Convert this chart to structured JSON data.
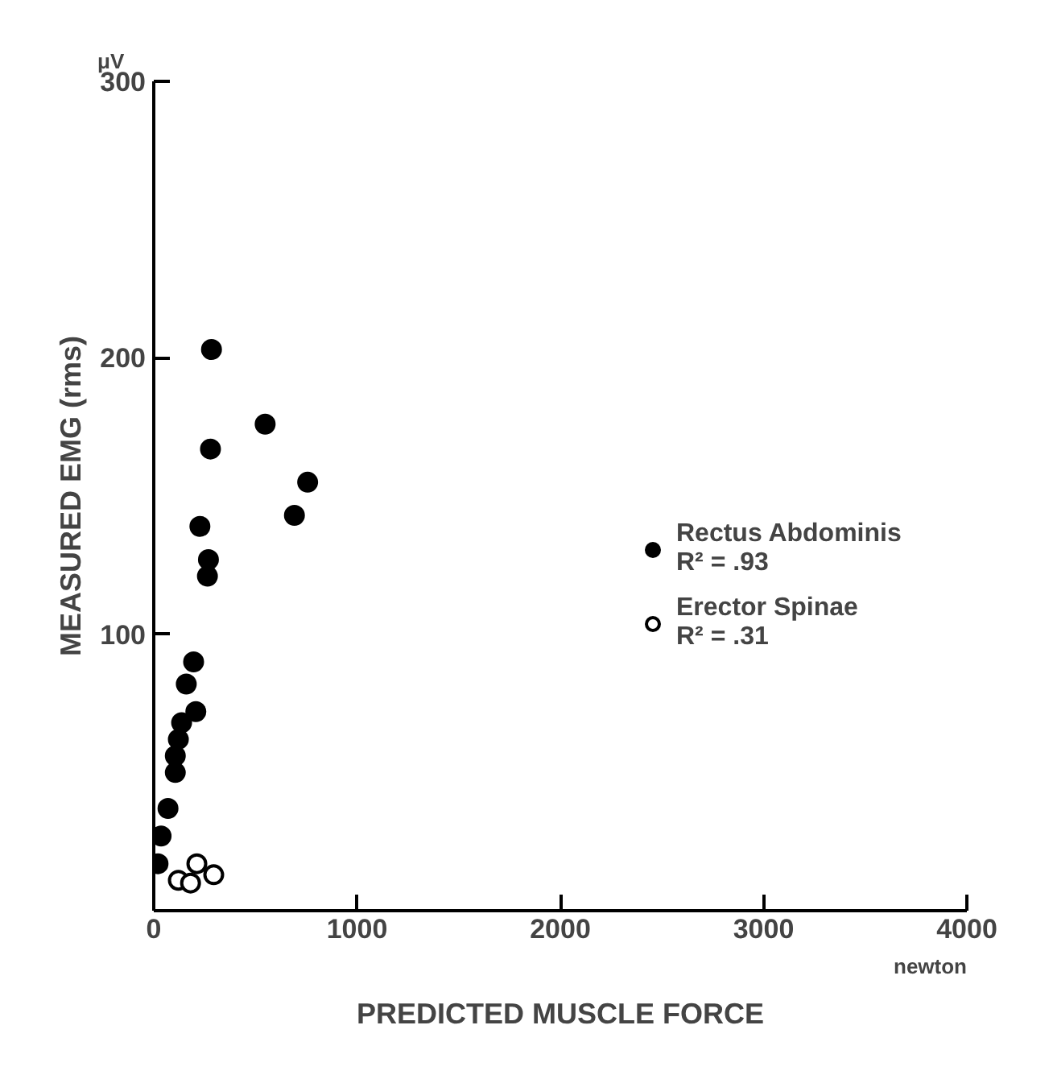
{
  "chart_data": {
    "type": "scatter",
    "xlabel": "PREDICTED MUSCLE FORCE",
    "ylabel": "MEASURED EMG (rms)",
    "xlim": [
      0,
      4000
    ],
    "ylim": [
      0,
      300
    ],
    "xticks": [
      0,
      1000,
      2000,
      3000,
      4000
    ],
    "yticks": [
      100,
      200,
      300
    ],
    "grid": false,
    "legend": "right",
    "marker": "circle",
    "annotations": [
      "R² = .93",
      "R² = .31",
      "μV",
      "newton"
    ],
    "series": [
      {
        "name": "Rectus Abdominis",
        "color": "#000000",
        "x": [
          284,
          548,
          279,
          757,
          692,
          227,
          269,
          264,
          196,
          160,
          207,
          137,
          121,
          106,
          106,
          70,
          36,
          21
        ],
        "values": [
          203,
          176,
          167,
          155,
          143,
          139,
          127,
          121,
          90,
          82,
          72,
          68,
          62,
          56,
          50,
          37,
          27,
          17
        ]
      },
      {
        "name": "Erector Spinae",
        "color": "#000000",
        "marker": "circle_open",
        "x": [
          121,
          181,
          212,
          295
        ],
        "values": [
          11,
          10,
          17,
          13
        ]
      }
    ]
  }
}
